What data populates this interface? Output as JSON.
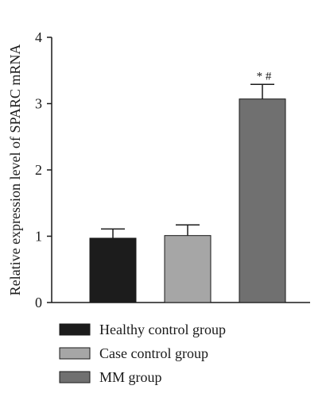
{
  "chart_data": {
    "type": "bar",
    "ylabel": "Relative expression level of SPARC mRNA",
    "xlabel": "",
    "ylim": [
      0,
      4
    ],
    "yticks": [
      0,
      1,
      2,
      3,
      4
    ],
    "grid": false,
    "legend_position": "bottom",
    "bars": [
      {
        "name": "Healthy control group",
        "value": 0.97,
        "error": 0.14,
        "color": "#1c1c1c",
        "annotation": ""
      },
      {
        "name": "Case control group",
        "value": 1.01,
        "error": 0.16,
        "color": "#a6a6a6",
        "annotation": ""
      },
      {
        "name": "MM group",
        "value": 3.07,
        "error": 0.22,
        "color": "#707070",
        "annotation": "* #"
      }
    ]
  }
}
